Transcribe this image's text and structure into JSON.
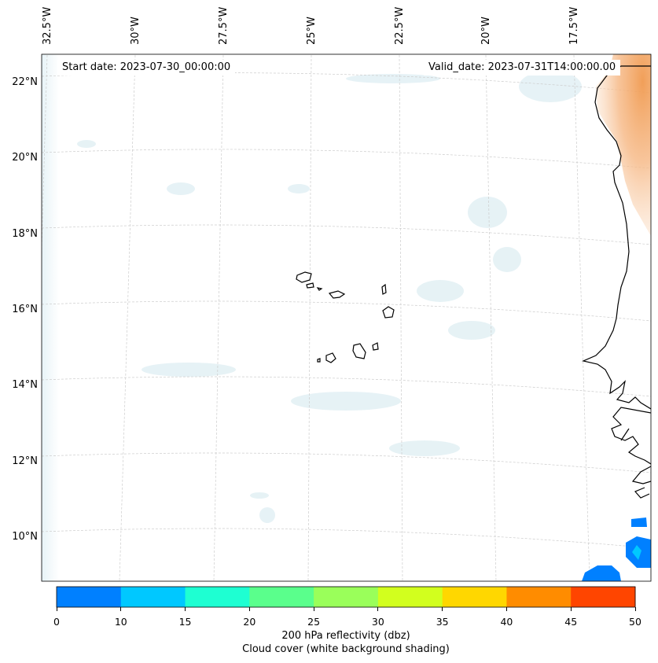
{
  "map": {
    "start_date_label": "Start date: 2023-07-30_00:00:00",
    "valid_date_label": "Valid_date: 2023-07-31T14:00:00.00",
    "longitude_labels": [
      "32.5°W",
      "30°W",
      "27.5°W",
      "25°W",
      "22.5°W",
      "20°W",
      "17.5°W"
    ],
    "latitude_labels": [
      "22°N",
      "20°N",
      "18°N",
      "16°N",
      "14°N",
      "12°N",
      "10°N"
    ],
    "extent": {
      "lon_west": -33.0,
      "lon_east": -15.4,
      "lat_south": 8.9,
      "lat_north": 22.8
    },
    "islands": [
      "Santo Antão",
      "São Vicente",
      "Santa Luzia",
      "São Nicolau",
      "Sal",
      "Boa Vista",
      "Maio",
      "Santiago",
      "Fogo",
      "Brava"
    ]
  },
  "colorbar": {
    "tick_labels": [
      "0",
      "10",
      "15",
      "20",
      "25",
      "30",
      "35",
      "40",
      "45",
      "50"
    ],
    "bin_colors": [
      "#0080ff",
      "#00c8ff",
      "#1effd2",
      "#5aff8c",
      "#9aff5a",
      "#d2ff1e",
      "#ffd700",
      "#ff8c00",
      "#ff4500"
    ],
    "label_line1": "200 hPa reflectivity (dbz)",
    "label_line2": "Cloud cover (white background shading)"
  },
  "legend_colors": {
    "land_heat": "#f4a460",
    "cloud_shading": "#d6eaf0",
    "coastline": "#000000",
    "gridline": "#cccccc"
  }
}
